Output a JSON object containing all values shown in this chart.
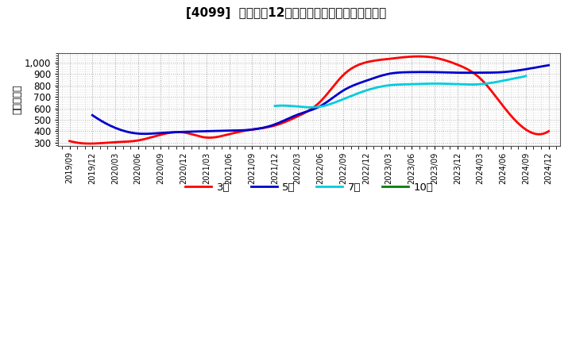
{
  "title": "[4099]  経常利益12か月移動合計の標準偏差の推移",
  "ylabel": "（百万円）",
  "background_color": "#ffffff",
  "grid_color": "#999999",
  "plot_bg_color": "#ffffff",
  "ylim": [
    270,
    1080
  ],
  "yticks": [
    300,
    400,
    500,
    600,
    700,
    800,
    900,
    1000
  ],
  "series": {
    "3年": {
      "color": "#ff0000",
      "x": [
        0,
        1,
        2,
        3,
        4,
        5,
        6,
        7,
        8,
        9,
        10,
        11,
        12,
        13,
        14,
        15,
        16,
        17,
        18,
        19,
        20,
        21
      ],
      "y": [
        315,
        293,
        305,
        320,
        370,
        390,
        345,
        375,
        415,
        450,
        530,
        660,
        890,
        1000,
        1030,
        1050,
        1040,
        980,
        860,
        620,
        415,
        400
      ]
    },
    "5年": {
      "color": "#0000cc",
      "x": [
        1,
        2,
        3,
        4,
        5,
        6,
        7,
        8,
        9,
        10,
        11,
        12,
        13,
        14,
        15,
        16,
        17,
        18,
        19,
        20,
        21
      ],
      "y": [
        540,
        430,
        380,
        385,
        395,
        400,
        405,
        415,
        460,
        545,
        620,
        755,
        840,
        900,
        915,
        915,
        910,
        910,
        915,
        940,
        975
      ]
    },
    "7年": {
      "color": "#00ccdd",
      "x": [
        9,
        10,
        11,
        12,
        13,
        14,
        15,
        16,
        17,
        18,
        19,
        20
      ],
      "y": [
        620,
        615,
        615,
        680,
        755,
        800,
        810,
        815,
        810,
        810,
        840,
        880
      ]
    },
    "10年": {
      "color": "#008000",
      "x": [],
      "y": []
    }
  },
  "xtick_labels": [
    "2019/09",
    "2019/12",
    "2020/03",
    "2020/06",
    "2020/09",
    "2020/12",
    "2021/03",
    "2021/06",
    "2021/09",
    "2021/12",
    "2022/03",
    "2022/06",
    "2022/09",
    "2022/12",
    "2023/03",
    "2023/06",
    "2023/09",
    "2023/12",
    "2024/03",
    "2024/06",
    "2024/09",
    "2024/12"
  ],
  "legend_entries": [
    "3年",
    "5年",
    "7年",
    "10年"
  ],
  "legend_colors": [
    "#ff0000",
    "#0000cc",
    "#00ccdd",
    "#008000"
  ]
}
